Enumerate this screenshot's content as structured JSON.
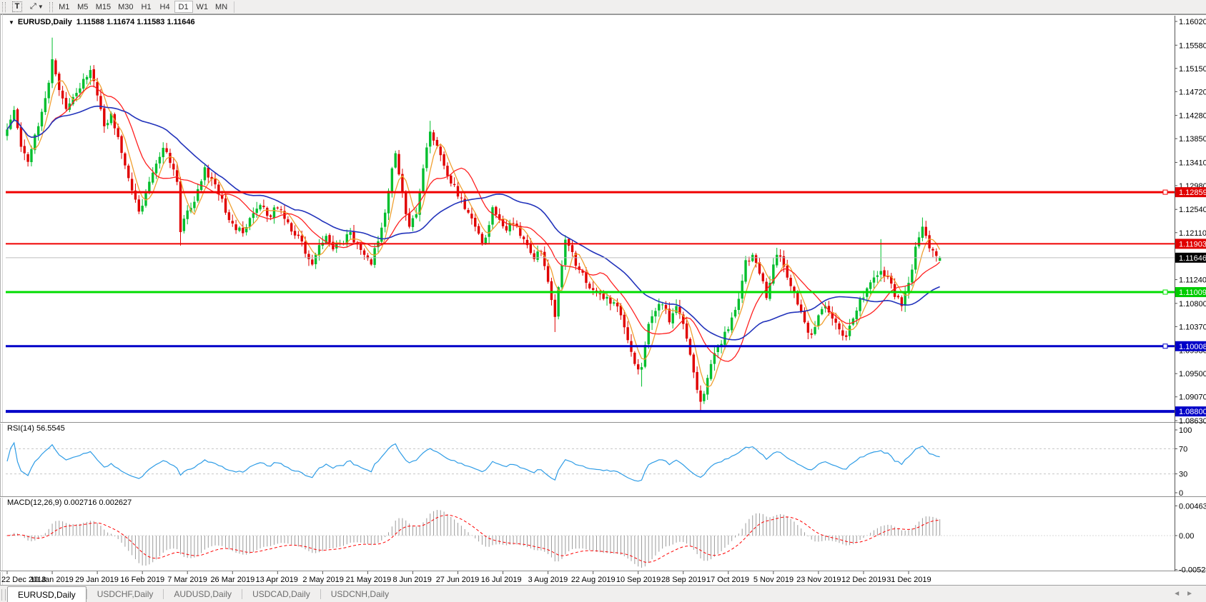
{
  "icons": {
    "text_tool": "T",
    "arrange_tool": "⤢",
    "dropdown": "▼",
    "title_marker": "▼",
    "tab_scroll_left": "◄",
    "tab_scroll_right": "►"
  },
  "toolbar": {
    "timeframes": [
      "M1",
      "M5",
      "M15",
      "M30",
      "H1",
      "H4",
      "D1",
      "W1",
      "MN"
    ],
    "active_timeframe": "D1"
  },
  "window": {
    "title_symbol": "EURUSD,Daily",
    "title_quote": "1.11588 1.11674 1.11583 1.11646"
  },
  "tabs": {
    "items": [
      "EURUSD,Daily",
      "USDCHF,Daily",
      "AUDUSD,Daily",
      "USDCAD,Daily",
      "USDCNH,Daily"
    ],
    "active": "EURUSD,Daily"
  },
  "chart_data": {
    "type": "candlestick",
    "symbol": "EURUSD",
    "timeframe": "Daily",
    "title": "EURUSD,Daily  1.11588 1.11674 1.11583 1.11646",
    "last_candle": {
      "open": 1.11588,
      "high": 1.11674,
      "low": 1.11583,
      "close": 1.11646
    },
    "current_price": 1.11646,
    "bull_color": "#00BE2D",
    "bear_color": "#E00000",
    "price_axis": {
      "max": 1.1602,
      "min": 1.0863,
      "ticks": [
        "1.16020",
        "1.15580",
        "1.15150",
        "1.14720",
        "1.14280",
        "1.13850",
        "1.13410",
        "1.12980",
        "1.12540",
        "1.12110",
        "1.11240",
        "1.10800",
        "1.10370",
        "1.09930",
        "1.09500",
        "1.09070",
        "1.08630"
      ]
    },
    "levels": [
      {
        "name": "resistance-upper",
        "value": 1.12859,
        "label": "1.12859",
        "color": "#F00000",
        "width": 3,
        "badge_bg": "#E00000",
        "badge_fg": "#ffffff",
        "handle": true
      },
      {
        "name": "resistance-lower",
        "value": 1.11903,
        "label": "1.11903",
        "color": "#F00000",
        "width": 2,
        "badge_bg": "#E00000",
        "badge_fg": "#ffffff",
        "handle": false
      },
      {
        "name": "current-price-line",
        "value": 1.11646,
        "label": "1.11646",
        "color": "#BDBDBD",
        "width": 1,
        "badge_bg": "#000000",
        "badge_fg": "#ffffff",
        "handle": false
      },
      {
        "name": "support-green",
        "value": 1.11009,
        "label": "1.11009",
        "color": "#00DC00",
        "width": 3,
        "badge_bg": "#00CC00",
        "badge_fg": "#ffffff",
        "handle": true
      },
      {
        "name": "support-blue-1",
        "value": 1.10008,
        "label": "1.10008",
        "color": "#0000C8",
        "width": 3,
        "badge_bg": "#0000C8",
        "badge_fg": "#ffffff",
        "handle": true
      },
      {
        "name": "support-blue-2",
        "value": 1.088,
        "label": "1.08800",
        "color": "#0000C8",
        "width": 4,
        "badge_bg": "#0000C8",
        "badge_fg": "#ffffff",
        "handle": false
      }
    ],
    "moving_averages": [
      {
        "name": "ma-fast",
        "period": 5,
        "color": "#F0A030",
        "width": 1.3
      },
      {
        "name": "ma-mid",
        "period": 13,
        "color": "#FF2020",
        "width": 1.3
      },
      {
        "name": "ma-slow",
        "period": 34,
        "color": "#2233BB",
        "width": 1.6
      }
    ],
    "date_ticks": [
      [
        0,
        "22 Dec 2018"
      ],
      [
        13,
        "10 Jan 2019"
      ],
      [
        26,
        "29 Jan 2019"
      ],
      [
        39,
        "16 Feb 2019"
      ],
      [
        52,
        "7 Mar 2019"
      ],
      [
        65,
        "26 Mar 2019"
      ],
      [
        78,
        "13 Apr 2019"
      ],
      [
        91,
        "2 May 2019"
      ],
      [
        104,
        "21 May 2019"
      ],
      [
        117,
        "8 Jun 2019"
      ],
      [
        130,
        "27 Jun 2019"
      ],
      [
        143,
        "16 Jul 2019"
      ],
      [
        156,
        "3 Aug 2019"
      ],
      [
        169,
        "22 Aug 2019"
      ],
      [
        182,
        "10 Sep 2019"
      ],
      [
        195,
        "28 Sep 2019"
      ],
      [
        208,
        "17 Oct 2019"
      ],
      [
        221,
        "5 Nov 2019"
      ],
      [
        234,
        "23 Nov 2019"
      ],
      [
        247,
        "12 Dec 2019"
      ],
      [
        260,
        "31 Dec 2019"
      ]
    ],
    "num_candles": 270,
    "anchors": [
      [
        0,
        1.1402
      ],
      [
        2,
        1.1438
      ],
      [
        4,
        1.137
      ],
      [
        6,
        1.1342
      ],
      [
        9,
        1.1408
      ],
      [
        11,
        1.146
      ],
      [
        13,
        1.1532
      ],
      [
        15,
        1.1475
      ],
      [
        17,
        1.144
      ],
      [
        19,
        1.1462
      ],
      [
        21,
        1.1478
      ],
      [
        24,
        1.1512
      ],
      [
        26,
        1.1465
      ],
      [
        28,
        1.1408
      ],
      [
        30,
        1.1432
      ],
      [
        32,
        1.1388
      ],
      [
        35,
        1.1312
      ],
      [
        38,
        1.125
      ],
      [
        40,
        1.1285
      ],
      [
        42,
        1.1322
      ],
      [
        45,
        1.1368
      ],
      [
        47,
        1.134
      ],
      [
        49,
        1.1305
      ],
      [
        50,
        1.1212
      ],
      [
        52,
        1.1252
      ],
      [
        54,
        1.1268
      ],
      [
        57,
        1.1332
      ],
      [
        59,
        1.131
      ],
      [
        61,
        1.1282
      ],
      [
        63,
        1.1248
      ],
      [
        65,
        1.1228
      ],
      [
        68,
        1.121
      ],
      [
        70,
        1.1238
      ],
      [
        73,
        1.1262
      ],
      [
        75,
        1.1242
      ],
      [
        78,
        1.1256
      ],
      [
        81,
        1.123
      ],
      [
        84,
        1.1205
      ],
      [
        86,
        1.1172
      ],
      [
        88,
        1.1152
      ],
      [
        90,
        1.1188
      ],
      [
        92,
        1.1205
      ],
      [
        94,
        1.118
      ],
      [
        96,
        1.1192
      ],
      [
        99,
        1.1212
      ],
      [
        101,
        1.119
      ],
      [
        103,
        1.117
      ],
      [
        105,
        1.1152
      ],
      [
        107,
        1.1195
      ],
      [
        109,
        1.1248
      ],
      [
        111,
        1.133
      ],
      [
        112,
        1.1358
      ],
      [
        114,
        1.1285
      ],
      [
        116,
        1.1222
      ],
      [
        118,
        1.1245
      ],
      [
        120,
        1.133
      ],
      [
        122,
        1.1398
      ],
      [
        124,
        1.1372
      ],
      [
        126,
        1.1335
      ],
      [
        128,
        1.1302
      ],
      [
        131,
        1.1275
      ],
      [
        133,
        1.1248
      ],
      [
        135,
        1.1222
      ],
      [
        137,
        1.1192
      ],
      [
        139,
        1.1225
      ],
      [
        140,
        1.1258
      ],
      [
        142,
        1.1235
      ],
      [
        144,
        1.1215
      ],
      [
        146,
        1.1228
      ],
      [
        148,
        1.1205
      ],
      [
        150,
        1.1188
      ],
      [
        152,
        1.1162
      ],
      [
        154,
        1.1175
      ],
      [
        156,
        1.112
      ],
      [
        158,
        1.1055
      ],
      [
        159,
        1.111
      ],
      [
        161,
        1.1198
      ],
      [
        163,
        1.1175
      ],
      [
        165,
        1.1142
      ],
      [
        167,
        1.1118
      ],
      [
        169,
        1.1105
      ],
      [
        171,
        1.1098
      ],
      [
        173,
        1.1092
      ],
      [
        175,
        1.1082
      ],
      [
        177,
        1.1058
      ],
      [
        179,
        1.1012
      ],
      [
        181,
        1.0968
      ],
      [
        183,
        1.0962
      ],
      [
        185,
        1.1042
      ],
      [
        187,
        1.1066
      ],
      [
        189,
        1.1078
      ],
      [
        191,
        1.1045
      ],
      [
        193,
        1.1075
      ],
      [
        195,
        1.1042
      ],
      [
        197,
        1.0985
      ],
      [
        199,
        1.092
      ],
      [
        200,
        1.0898
      ],
      [
        202,
        1.0942
      ],
      [
        204,
        1.0988
      ],
      [
        206,
        1.1005
      ],
      [
        208,
        1.1032
      ],
      [
        210,
        1.1068
      ],
      [
        212,
        1.1122
      ],
      [
        213,
        1.116
      ],
      [
        215,
        1.117
      ],
      [
        217,
        1.1135
      ],
      [
        219,
        1.109
      ],
      [
        221,
        1.1152
      ],
      [
        222,
        1.117
      ],
      [
        224,
        1.1148
      ],
      [
        226,
        1.1112
      ],
      [
        228,
        1.1078
      ],
      [
        230,
        1.1045
      ],
      [
        232,
        1.1022
      ],
      [
        234,
        1.1058
      ],
      [
        236,
        1.1075
      ],
      [
        238,
        1.1052
      ],
      [
        240,
        1.1032
      ],
      [
        242,
        1.1018
      ],
      [
        244,
        1.1052
      ],
      [
        246,
        1.1088
      ],
      [
        248,
        1.1108
      ],
      [
        250,
        1.1128
      ],
      [
        252,
        1.114
      ],
      [
        254,
        1.113
      ],
      [
        256,
        1.1092
      ],
      [
        258,
        1.1075
      ],
      [
        260,
        1.1118
      ],
      [
        262,
        1.1185
      ],
      [
        264,
        1.1222
      ],
      [
        265,
        1.1205
      ],
      [
        266,
        1.1182
      ],
      [
        267,
        1.1178
      ],
      [
        268,
        1.1168
      ],
      [
        269,
        1.11646
      ]
    ],
    "special_candles": [
      {
        "i": 13,
        "h": 1.1572
      },
      {
        "i": 50,
        "l": 1.1187
      },
      {
        "i": 122,
        "h": 1.1418
      },
      {
        "i": 158,
        "l": 1.1027
      },
      {
        "i": 183,
        "l": 1.0926
      },
      {
        "i": 200,
        "l": 1.0879
      },
      {
        "i": 252,
        "h": 1.1199
      },
      {
        "i": 264,
        "h": 1.1239
      },
      {
        "i": 269,
        "o": 1.11588,
        "h": 1.11674,
        "l": 1.11583,
        "c": 1.11646
      }
    ],
    "indicators": {
      "rsi": {
        "label": "RSI(14) 56.5545",
        "period": 14,
        "value": 56.5545,
        "color": "#2E9CE6",
        "level_lines": [
          70,
          30
        ],
        "axis": [
          "100",
          "70",
          "30",
          "0"
        ]
      },
      "macd": {
        "label": "MACD(12,26,9) 0.002716 0.002627",
        "fast": 12,
        "slow": 26,
        "signal": 9,
        "value_main": 0.002716,
        "value_signal": 0.002627,
        "hist_color": "#9B9B9B",
        "signal_color": "#FF0000",
        "axis": [
          [
            "0.00463",
            0.00463
          ],
          [
            "0.00",
            0
          ],
          [
            "-0.005299",
            -0.005299
          ]
        ]
      }
    },
    "gen": {
      "seed": 11,
      "wiggle": 0.0009,
      "wick": 0.0011,
      "gap": 0.0004
    }
  }
}
